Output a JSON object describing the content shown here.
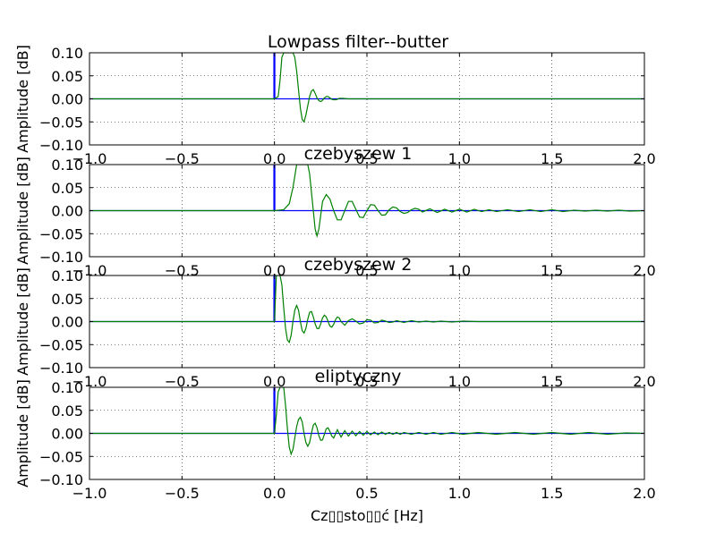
{
  "figure": {
    "xlabel": "Cz▯▯sto▯▯ć [Hz]"
  },
  "chart_data": [
    {
      "type": "line",
      "title": "Lowpass filter--butter",
      "ylabel": "Amplitude [dB]",
      "xlim": [
        -1.0,
        2.0
      ],
      "ylim": [
        -0.1,
        0.1
      ],
      "xticks": [
        "−1.0",
        "−0.5",
        "0.0",
        "0.5",
        "1.0",
        "1.5",
        "2.0"
      ],
      "yticks": [
        "0.10",
        "0.05",
        "0.00",
        "−0.05",
        "−0.10"
      ],
      "grid": true,
      "series": [
        {
          "color": "#0000ff",
          "x": [
            -1.0,
            -0.004,
            -0.003,
            -0.003,
            0.0,
            0.0,
            0.002,
            0.002,
            2.0
          ],
          "y": [
            0,
            0,
            0,
            0.1,
            0.1,
            0.1,
            0.1,
            0,
            0
          ]
        },
        {
          "color": "#008000",
          "x": [
            -1.0,
            0.0,
            0.02,
            0.03,
            0.04,
            0.05,
            0.06,
            0.07,
            0.08,
            0.09,
            0.1,
            0.11,
            0.12,
            0.13,
            0.14,
            0.15,
            0.16,
            0.17,
            0.18,
            0.19,
            0.2,
            0.21,
            0.22,
            0.23,
            0.24,
            0.25,
            0.26,
            0.27,
            0.28,
            0.29,
            0.3,
            0.31,
            0.32,
            0.33,
            0.34,
            0.35,
            0.37,
            0.4,
            2.0
          ],
          "y": [
            0,
            0,
            0.005,
            0.04,
            0.09,
            0.1,
            0.1,
            0.1,
            0.1,
            0.1,
            0.1,
            0.09,
            0.06,
            0.02,
            -0.02,
            -0.045,
            -0.05,
            -0.035,
            -0.015,
            0.005,
            0.017,
            0.02,
            0.012,
            0.002,
            -0.004,
            -0.006,
            -0.003,
            0.002,
            0.005,
            0.005,
            0.002,
            -0.001,
            -0.002,
            -0.002,
            -0.001,
            0.001,
            0.001,
            0,
            0
          ]
        }
      ]
    },
    {
      "type": "line",
      "title": "czebyszew 1",
      "ylabel": "Amplitude [dB]",
      "xlim": [
        -1.0,
        2.0
      ],
      "ylim": [
        -0.1,
        0.1
      ],
      "xticks": [
        "−1.0",
        "−0.5",
        "0.0",
        "0.5",
        "1.0",
        "1.5",
        "2.0"
      ],
      "yticks": [
        "0.10",
        "0.05",
        "0.00",
        "−0.05",
        "−0.10"
      ],
      "grid": true,
      "series": [
        {
          "color": "#0000ff",
          "x": [
            -1.0,
            -0.004,
            -0.003,
            -0.003,
            0.0,
            0.0,
            0.002,
            0.002,
            2.0
          ],
          "y": [
            0,
            0,
            0,
            0.1,
            0.1,
            0.1,
            0.1,
            0,
            0
          ]
        },
        {
          "color": "#008000",
          "x": [
            -1.0,
            0.0,
            0.05,
            0.08,
            0.1,
            0.12,
            0.14,
            0.16,
            0.18,
            0.19,
            0.2,
            0.21,
            0.22,
            0.23,
            0.24,
            0.25,
            0.26,
            0.28,
            0.3,
            0.32,
            0.34,
            0.36,
            0.38,
            0.4,
            0.42,
            0.44,
            0.46,
            0.48,
            0.5,
            0.52,
            0.54,
            0.56,
            0.58,
            0.6,
            0.62,
            0.64,
            0.66,
            0.68,
            0.7,
            0.72,
            0.74,
            0.76,
            0.78,
            0.8,
            0.84,
            0.88,
            0.92,
            0.96,
            1.0,
            1.04,
            1.08,
            1.12,
            1.16,
            1.2,
            1.26,
            1.32,
            1.38,
            1.44,
            1.5,
            1.56,
            1.62,
            1.68,
            1.74,
            1.8,
            1.86,
            1.92,
            2.0
          ],
          "y": [
            0,
            0,
            0.002,
            0.015,
            0.05,
            0.1,
            0.1,
            0.1,
            0.1,
            0.08,
            0.04,
            0.0,
            -0.04,
            -0.055,
            -0.04,
            -0.01,
            0.02,
            0.035,
            0.025,
            0.0,
            -0.02,
            -0.02,
            0.0,
            0.02,
            0.02,
            0.003,
            -0.014,
            -0.015,
            0.0,
            0.013,
            0.012,
            0.0,
            -0.01,
            -0.009,
            0.002,
            0.008,
            0.006,
            -0.002,
            -0.006,
            -0.004,
            0.002,
            0.005,
            0.003,
            -0.003,
            0.004,
            -0.004,
            0.003,
            -0.003,
            0.003,
            -0.003,
            0.003,
            -0.002,
            0.002,
            -0.002,
            0.002,
            -0.002,
            0.002,
            -0.002,
            0.002,
            -0.002,
            0.001,
            -0.001,
            0.001,
            -0.001,
            0.001,
            -0.001,
            0
          ]
        }
      ]
    },
    {
      "type": "line",
      "title": "czebyszew 2",
      "ylabel": "Amplitude [dB]",
      "xlim": [
        -1.0,
        2.0
      ],
      "ylim": [
        -0.1,
        0.1
      ],
      "xticks": [
        "−1.0",
        "−0.5",
        "0.0",
        "0.5",
        "1.0",
        "1.5",
        "2.0"
      ],
      "yticks": [
        "0.10",
        "0.05",
        "0.00",
        "−0.05",
        "−0.10"
      ],
      "grid": true,
      "series": [
        {
          "color": "#0000ff",
          "x": [
            -1.0,
            -0.004,
            -0.003,
            -0.003,
            0.0,
            0.0,
            0.002,
            0.002,
            2.0
          ],
          "y": [
            0,
            0,
            0,
            0.1,
            0.1,
            0.1,
            0.1,
            0,
            0
          ]
        },
        {
          "color": "#008000",
          "x": [
            -1.0,
            0.0,
            0.005,
            0.01,
            0.02,
            0.03,
            0.04,
            0.05,
            0.06,
            0.07,
            0.08,
            0.09,
            0.1,
            0.11,
            0.12,
            0.13,
            0.14,
            0.15,
            0.16,
            0.17,
            0.18,
            0.19,
            0.2,
            0.21,
            0.22,
            0.23,
            0.24,
            0.25,
            0.26,
            0.27,
            0.28,
            0.29,
            0.3,
            0.31,
            0.32,
            0.33,
            0.34,
            0.35,
            0.36,
            0.38,
            0.4,
            0.42,
            0.44,
            0.46,
            0.48,
            0.5,
            0.52,
            0.54,
            0.56,
            0.58,
            0.6,
            0.62,
            0.64,
            0.66,
            0.68,
            0.7,
            0.74,
            0.78,
            0.82,
            0.86,
            0.9,
            0.96,
            1.02,
            1.1,
            1.2,
            1.3,
            1.4,
            1.6,
            1.8,
            2.0
          ],
          "y": [
            0,
            0,
            0.05,
            0.1,
            0.1,
            0.1,
            0.08,
            0.03,
            -0.015,
            -0.04,
            -0.045,
            -0.03,
            0.0,
            0.025,
            0.035,
            0.025,
            0.0,
            -0.02,
            -0.025,
            -0.015,
            0.005,
            0.02,
            0.022,
            0.01,
            -0.005,
            -0.015,
            -0.015,
            -0.005,
            0.008,
            0.014,
            0.01,
            0.0,
            -0.01,
            -0.012,
            -0.006,
            0.004,
            0.01,
            0.008,
            0.0,
            -0.008,
            0.002,
            0.006,
            0.001,
            -0.005,
            -0.003,
            0.004,
            0.003,
            -0.003,
            -0.002,
            0.003,
            0.001,
            -0.002,
            -0.001,
            0.002,
            0.0,
            -0.002,
            0.002,
            -0.001,
            0.001,
            -0.001,
            0.001,
            -0.001,
            0.001,
            0,
            0,
            0,
            0,
            0,
            0,
            0
          ]
        }
      ]
    },
    {
      "type": "line",
      "title": "eliptyczny",
      "ylabel": "Amplitude [dB]",
      "xlim": [
        -1.0,
        2.0
      ],
      "ylim": [
        -0.1,
        0.1
      ],
      "xticks": [
        "−1.0",
        "−0.5",
        "0.0",
        "0.5",
        "1.0",
        "1.5",
        "2.0"
      ],
      "yticks": [
        "0.10",
        "0.05",
        "0.00",
        "−0.05",
        "−0.10"
      ],
      "grid": true,
      "series": [
        {
          "color": "#0000ff",
          "x": [
            -1.0,
            -0.004,
            -0.003,
            -0.003,
            0.0,
            0.0,
            0.002,
            0.002,
            2.0
          ],
          "y": [
            0,
            0,
            0,
            0.1,
            0.1,
            0.1,
            0.1,
            0,
            0
          ]
        },
        {
          "color": "#008000",
          "x": [
            -1.0,
            0.0,
            0.01,
            0.02,
            0.03,
            0.04,
            0.05,
            0.06,
            0.07,
            0.08,
            0.09,
            0.1,
            0.11,
            0.12,
            0.13,
            0.14,
            0.15,
            0.16,
            0.17,
            0.18,
            0.19,
            0.2,
            0.21,
            0.22,
            0.23,
            0.24,
            0.25,
            0.26,
            0.27,
            0.28,
            0.29,
            0.3,
            0.31,
            0.32,
            0.34,
            0.36,
            0.38,
            0.4,
            0.42,
            0.44,
            0.46,
            0.48,
            0.5,
            0.52,
            0.54,
            0.56,
            0.58,
            0.6,
            0.62,
            0.64,
            0.66,
            0.68,
            0.7,
            0.74,
            0.78,
            0.82,
            0.86,
            0.9,
            0.96,
            1.02,
            1.1,
            1.2,
            1.3,
            1.4,
            1.5,
            1.6,
            1.7,
            1.8,
            1.9,
            2.0
          ],
          "y": [
            0,
            0,
            0.04,
            0.09,
            0.1,
            0.1,
            0.1,
            0.06,
            0.01,
            -0.03,
            -0.045,
            -0.035,
            -0.01,
            0.015,
            0.03,
            0.035,
            0.025,
            0.0,
            -0.02,
            -0.028,
            -0.02,
            0.0,
            0.018,
            0.022,
            0.012,
            -0.005,
            -0.015,
            -0.014,
            -0.002,
            0.01,
            0.012,
            0.004,
            -0.006,
            -0.01,
            0.008,
            -0.008,
            0.006,
            -0.006,
            0.005,
            -0.005,
            0.004,
            -0.004,
            0.004,
            -0.003,
            0.003,
            -0.003,
            0.003,
            -0.002,
            0.002,
            -0.002,
            0.002,
            -0.002,
            0.002,
            -0.002,
            0.002,
            -0.002,
            0.002,
            -0.002,
            0.002,
            -0.002,
            0.002,
            -0.002,
            0.002,
            -0.002,
            0.002,
            -0.002,
            0.002,
            -0.002,
            0.001,
            0
          ]
        }
      ]
    }
  ]
}
